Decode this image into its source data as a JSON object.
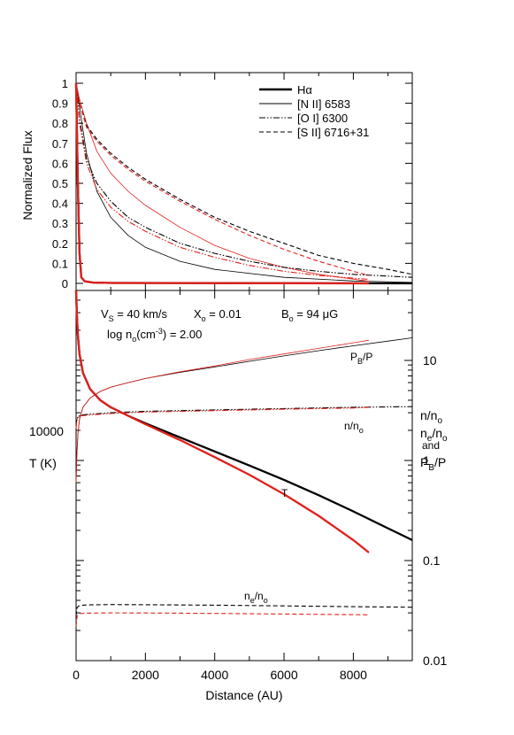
{
  "chart_data": [
    {
      "type": "line",
      "panel": "top",
      "ylabel": "Normalized Flux",
      "xlim": [
        0,
        9700
      ],
      "ylim": [
        0,
        1
      ],
      "yticks": [
        "0",
        "0.1",
        "0.2",
        "0.3",
        "0.4",
        "0.5",
        "0.6",
        "0.7",
        "0.8",
        "0.9",
        "1"
      ],
      "legend_position": "top-right",
      "legend": [
        {
          "label": "Hα",
          "style": "thick-solid"
        },
        {
          "label": "[N II] 6583",
          "style": "thin-solid"
        },
        {
          "label": "[O I] 6300",
          "style": "dash-dot"
        },
        {
          "label": "[S II] 6716+31",
          "style": "dashed"
        }
      ],
      "series": [
        {
          "line": "Hα",
          "model": "black",
          "x": [
            0,
            20,
            50,
            100,
            150,
            250,
            500,
            1000,
            9700
          ],
          "y": [
            1,
            0.8,
            0.5,
            0.15,
            0.03,
            0.01,
            0.004,
            0.002,
            0.0
          ]
        },
        {
          "line": "Hα",
          "model": "red",
          "x": [
            0,
            20,
            50,
            100,
            150,
            250,
            500,
            1000,
            8450
          ],
          "y": [
            1,
            0.8,
            0.5,
            0.15,
            0.03,
            0.01,
            0.004,
            0.002,
            0.0
          ]
        },
        {
          "line": "[N II] 6583",
          "model": "black",
          "x": [
            0,
            100,
            300,
            600,
            1000,
            1500,
            2000,
            3000,
            4000,
            6000,
            8000,
            9700
          ],
          "y": [
            1,
            0.88,
            0.65,
            0.46,
            0.33,
            0.24,
            0.18,
            0.11,
            0.07,
            0.03,
            0.012,
            0.005
          ]
        },
        {
          "line": "[N II] 6583",
          "model": "red",
          "x": [
            0,
            100,
            300,
            600,
            1000,
            1500,
            2000,
            3000,
            4000,
            5000,
            6000,
            7000,
            8450
          ],
          "y": [
            1,
            0.92,
            0.8,
            0.66,
            0.55,
            0.46,
            0.39,
            0.28,
            0.19,
            0.125,
            0.08,
            0.045,
            0.01
          ]
        },
        {
          "line": "[O I] 6300",
          "model": "black",
          "x": [
            0,
            100,
            300,
            600,
            1000,
            1500,
            2000,
            3000,
            4000,
            5000,
            6000,
            7000,
            8000,
            9700
          ],
          "y": [
            1,
            0.82,
            0.62,
            0.5,
            0.41,
            0.33,
            0.28,
            0.2,
            0.15,
            0.11,
            0.08,
            0.06,
            0.045,
            0.03
          ]
        },
        {
          "line": "[O I] 6300",
          "model": "red",
          "x": [
            0,
            100,
            300,
            600,
            1000,
            1500,
            2000,
            3000,
            4000,
            5000,
            6000,
            7000,
            8450
          ],
          "y": [
            1,
            0.8,
            0.6,
            0.47,
            0.38,
            0.31,
            0.26,
            0.18,
            0.13,
            0.09,
            0.06,
            0.04,
            0.02
          ]
        },
        {
          "line": "[S II] 6716+31",
          "model": "black",
          "x": [
            0,
            100,
            300,
            600,
            1000,
            1500,
            2000,
            3000,
            4000,
            5000,
            6000,
            7000,
            8000,
            9000,
            9700
          ],
          "y": [
            1,
            0.9,
            0.79,
            0.72,
            0.65,
            0.58,
            0.52,
            0.42,
            0.33,
            0.26,
            0.2,
            0.14,
            0.1,
            0.07,
            0.045
          ]
        },
        {
          "line": "[S II] 6716+31",
          "model": "red",
          "x": [
            0,
            100,
            300,
            600,
            1000,
            1500,
            2000,
            3000,
            4000,
            5000,
            6000,
            7000,
            8000,
            8450
          ],
          "y": [
            1,
            0.9,
            0.78,
            0.71,
            0.64,
            0.57,
            0.51,
            0.41,
            0.32,
            0.24,
            0.17,
            0.11,
            0.06,
            0.04
          ]
        }
      ]
    },
    {
      "type": "line",
      "panel": "bottom",
      "xlabel": "Distance (AU)",
      "xlim": [
        0,
        9700
      ],
      "xticks": [
        "0",
        "2000",
        "4000",
        "6000",
        "8000"
      ],
      "ylabel_left": "T (K)",
      "ylabel_left_tick": "10000",
      "ylabel_right": [
        "n/n",
        "n",
        "and",
        "P"
      ],
      "right_axis_scale": "log",
      "right_ylim": [
        0.01,
        50
      ],
      "right_yticks": [
        "0.01",
        "0.1",
        "1",
        "10"
      ],
      "annotations": {
        "vs": "V",
        "vs_sub": "S",
        "vs_val": " = 40 km/s",
        "xo": "X",
        "xo_sub": "o",
        "xo_val": " = 0.01",
        "bo": "B",
        "bo_sub": "o",
        "bo_val": " = 94 μG",
        "lognl": "log n",
        "lognsub": "o",
        "lognunit": "(cm",
        "lognexp": "-3",
        "lognend": ") = 2.00",
        "pb_label": "P",
        "pb_sub": "B",
        "pb_end": "/P",
        "n_label": "n/n",
        "n_sub": "o",
        "t_label": "T",
        "ne_label": "n",
        "ne_sub1": "e",
        "ne_mid": "/n",
        "ne_sub2": "o"
      },
      "right_label_subs": {
        "o": "o",
        "e": "e",
        "o2": "o",
        "b": "B",
        "p_end": "/P"
      },
      "series": [
        {
          "quantity": "PB/P",
          "model": "black",
          "x": [
            0,
            20,
            50,
            100,
            200,
            400,
            700,
            1000,
            1500,
            2000,
            3000,
            4000,
            5000,
            6000,
            7000,
            8000,
            9000,
            9700
          ],
          "y": [
            0.6,
            1.1,
            1.8,
            2.6,
            3.4,
            4.2,
            4.9,
            5.4,
            6.0,
            6.6,
            7.6,
            8.6,
            9.8,
            11.1,
            12.5,
            14.0,
            15.6,
            16.8
          ]
        },
        {
          "quantity": "PB/P",
          "model": "red",
          "x": [
            0,
            20,
            50,
            100,
            200,
            400,
            700,
            1000,
            1500,
            2000,
            3000,
            4000,
            5000,
            6000,
            7000,
            8000,
            8450
          ],
          "y": [
            0.6,
            1.1,
            1.8,
            2.6,
            3.4,
            4.2,
            4.9,
            5.4,
            6.0,
            6.6,
            7.7,
            8.8,
            10.2,
            11.6,
            13.2,
            15.0,
            15.9
          ]
        },
        {
          "quantity": "n/no",
          "model": "black",
          "x": [
            0,
            20,
            60,
            150,
            400,
            1000,
            2000,
            4000,
            6000,
            8000,
            9700
          ],
          "y": [
            2.2,
            2.6,
            2.75,
            2.85,
            2.9,
            3.0,
            3.1,
            3.2,
            3.3,
            3.4,
            3.45
          ]
        },
        {
          "quantity": "n/no",
          "model": "red",
          "x": [
            0,
            20,
            60,
            150,
            400,
            1000,
            2000,
            4000,
            6000,
            8000,
            8450
          ],
          "y": [
            2.1,
            2.5,
            2.7,
            2.8,
            2.85,
            2.95,
            3.05,
            3.15,
            3.25,
            3.35,
            3.4
          ]
        },
        {
          "quantity": "T",
          "model": "black",
          "x": [
            0,
            20,
            50,
            100,
            200,
            400,
            700,
            1000,
            1500,
            2000,
            3000,
            4000,
            5000,
            6000,
            7000,
            8000,
            9000,
            9700
          ],
          "y": [
            50,
            30,
            18,
            11.5,
            7.5,
            5.2,
            4.0,
            3.4,
            2.8,
            2.35,
            1.7,
            1.23,
            0.89,
            0.64,
            0.45,
            0.31,
            0.21,
            0.16
          ]
        },
        {
          "quantity": "T",
          "model": "red",
          "x": [
            0,
            20,
            50,
            100,
            200,
            400,
            700,
            1000,
            1500,
            2000,
            3000,
            4000,
            5000,
            6000,
            7000,
            8000,
            8450
          ],
          "y": [
            50,
            30,
            18,
            11.5,
            7.5,
            5.2,
            4.0,
            3.4,
            2.8,
            2.3,
            1.6,
            1.08,
            0.72,
            0.46,
            0.28,
            0.16,
            0.12
          ]
        },
        {
          "quantity": "ne/no",
          "model": "black",
          "x": [
            0,
            30,
            100,
            300,
            1000,
            2000,
            4000,
            6000,
            8000,
            9700
          ],
          "y": [
            0.028,
            0.034,
            0.0355,
            0.036,
            0.0363,
            0.0362,
            0.0358,
            0.0352,
            0.0346,
            0.0342
          ]
        },
        {
          "quantity": "ne/no",
          "model": "red",
          "x": [
            0,
            30,
            100,
            300,
            1000,
            2000,
            4000,
            6000,
            8000,
            8450
          ],
          "y": [
            0.022,
            0.028,
            0.0295,
            0.0298,
            0.03,
            0.0299,
            0.0296,
            0.0292,
            0.0288,
            0.0287
          ]
        }
      ]
    }
  ],
  "colors": {
    "model_black": "#000000",
    "model_red": "#e0201b"
  }
}
